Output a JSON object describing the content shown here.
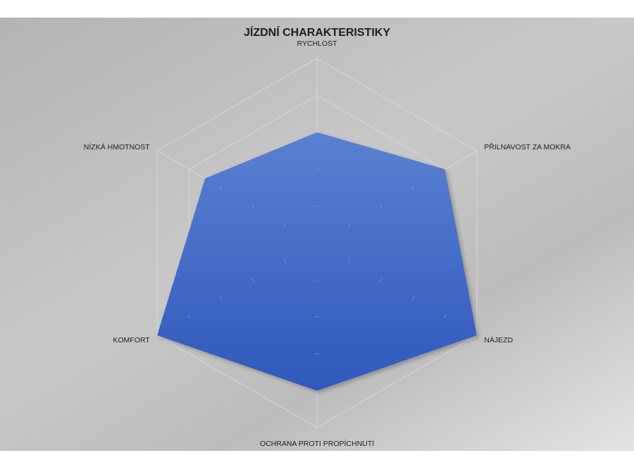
{
  "chart_data": {
    "type": "radar",
    "title": "JÍZDNÍ CHARAKTERISTIKY",
    "categories": [
      "RYCHLOST",
      "PŘILNAVOST ZA MOKRA",
      "NÁJEZD",
      "OCHRANA PROTI PROPÍCHNUTÍ",
      "KOMFORT",
      "NÍZKÁ HMOTNOST"
    ],
    "series": [
      {
        "values": [
          3,
          4,
          5,
          4,
          5,
          3.5
        ]
      }
    ],
    "rlim": [
      0,
      5
    ],
    "grid": true,
    "legend": "none"
  },
  "colors": {
    "fill_top": "#5a80d2",
    "fill_bottom": "#2f59bb",
    "grid": "#dcdcdc",
    "background": "#c4c4c4"
  }
}
